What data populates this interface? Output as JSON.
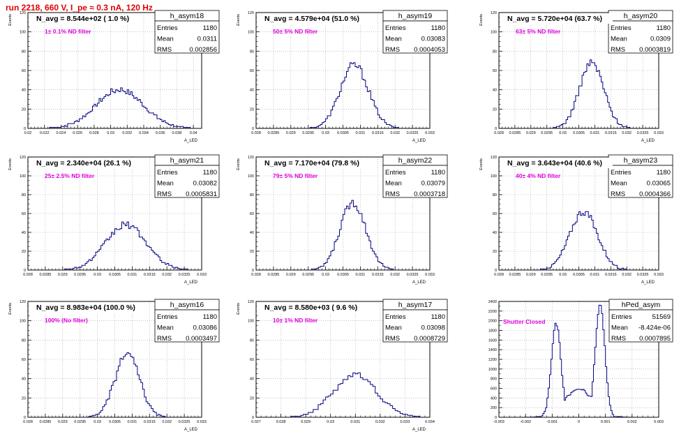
{
  "page": {
    "run_title": "run 2218,   660 V, I_pe ≈ 0.3 nA, 120 Hz"
  },
  "colors": {
    "histogram": "#000080",
    "annotation": "#e000e0",
    "run_title": "#e00000",
    "frame": "#000000",
    "grid": "#9a9a9a"
  },
  "chart_data": [
    {
      "type": "histogram",
      "name": "h_asym18",
      "ylabel": "Events",
      "xlabel": "A_LED",
      "xlim": [
        0.02,
        0.041
      ],
      "ylim": [
        0,
        120
      ],
      "xticks": [
        "0.02",
        "0.022",
        "0.024",
        "0.026",
        "0.028",
        "0.03",
        "0.032",
        "0.034",
        "0.036",
        "0.038",
        "0.04"
      ],
      "xtick_values": [
        0.02,
        0.022,
        0.024,
        0.026,
        0.028,
        0.03,
        0.032,
        0.034,
        0.036,
        0.038,
        0.04
      ],
      "yticks": [
        "0",
        "20",
        "40",
        "60",
        "80",
        "100",
        "120"
      ],
      "yticks_values": [
        0,
        20,
        40,
        60,
        80,
        100,
        120
      ],
      "grid": true,
      "header": "N_avg = 8.544e+02 ( 1.0 %)",
      "annotation": "1± 0.1% ND filter",
      "stats": {
        "Entries": "1180",
        "Mean": "0.0311",
        "RMS": "0.002856"
      },
      "mean": 0.0311,
      "rms": 0.002856,
      "entries": 1180,
      "peak": 40,
      "bin_width": 0.0002
    },
    {
      "type": "histogram",
      "name": "h_asym19",
      "ylabel": "Events",
      "xlabel": "A_LED",
      "xlim": [
        0.028,
        0.033
      ],
      "ylim": [
        0,
        120
      ],
      "xticks": [
        "0.028",
        "0.0285",
        "0.029",
        "0.0295",
        "0.03",
        "0.0305",
        "0.031",
        "0.0315",
        "0.032",
        "0.0325",
        "0.033"
      ],
      "xtick_values": [
        0.028,
        0.0285,
        0.029,
        0.0295,
        0.03,
        0.0305,
        0.031,
        0.0315,
        0.032,
        0.0325,
        0.033
      ],
      "yticks": [
        "0",
        "20",
        "40",
        "60",
        "80",
        "100",
        "120"
      ],
      "yticks_values": [
        0,
        20,
        40,
        60,
        80,
        100,
        120
      ],
      "grid": true,
      "header": "N_avg = 4.579e+04 (51.0 %)",
      "annotation": "50± 5% ND filter",
      "stats": {
        "Entries": "1180",
        "Mean": "0.03083",
        "RMS": "0.0004053"
      },
      "mean": 0.03083,
      "rms": 0.0004053,
      "entries": 1180,
      "peak": 66,
      "bin_width": 5e-05
    },
    {
      "type": "histogram",
      "name": "h_asym20",
      "ylabel": "Events",
      "xlabel": "A_LED",
      "xlim": [
        0.028,
        0.033
      ],
      "ylim": [
        0,
        120
      ],
      "xticks": [
        "0.028",
        "0.0285",
        "0.029",
        "0.0295",
        "0.03",
        "0.0305",
        "0.031",
        "0.0315",
        "0.032",
        "0.0325",
        "0.033"
      ],
      "xtick_values": [
        0.028,
        0.0285,
        0.029,
        0.0295,
        0.03,
        0.0305,
        0.031,
        0.0315,
        0.032,
        0.0325,
        0.033
      ],
      "yticks": [
        "0",
        "20",
        "40",
        "60",
        "80",
        "100",
        "120"
      ],
      "yticks_values": [
        0,
        20,
        40,
        60,
        80,
        100,
        120
      ],
      "grid": true,
      "header": "N_avg = 5.720e+04 (63.7 %)",
      "annotation": "63± 5% ND filter",
      "stats": {
        "Entries": "1180",
        "Mean": "0.0309",
        "RMS": "0.0003819"
      },
      "mean": 0.0309,
      "rms": 0.0003819,
      "entries": 1180,
      "peak": 68,
      "bin_width": 5e-05
    },
    {
      "type": "histogram",
      "name": "h_asym21",
      "ylabel": "Events",
      "xlabel": "A_LED",
      "xlim": [
        0.028,
        0.033
      ],
      "ylim": [
        0,
        120
      ],
      "xticks": [
        "0.028",
        "0.0285",
        "0.029",
        "0.0295",
        "0.03",
        "0.0305",
        "0.031",
        "0.0315",
        "0.032",
        "0.0325",
        "0.033"
      ],
      "xtick_values": [
        0.028,
        0.0285,
        0.029,
        0.0295,
        0.03,
        0.0305,
        0.031,
        0.0315,
        0.032,
        0.0325,
        0.033
      ],
      "yticks": [
        "0",
        "20",
        "40",
        "60",
        "80",
        "100",
        "120"
      ],
      "yticks_values": [
        0,
        20,
        40,
        60,
        80,
        100,
        120
      ],
      "grid": true,
      "header": "N_avg = 2.340e+04 (26.1 %)",
      "annotation": "25± 2.5% ND filter",
      "stats": {
        "Entries": "1180",
        "Mean": "0.03082",
        "RMS": "0.0005831"
      },
      "mean": 0.03082,
      "rms": 0.0005831,
      "entries": 1180,
      "peak": 48,
      "bin_width": 5e-05
    },
    {
      "type": "histogram",
      "name": "h_asym22",
      "ylabel": "Events",
      "xlabel": "A_LED",
      "xlim": [
        0.028,
        0.033
      ],
      "ylim": [
        0,
        120
      ],
      "xticks": [
        "0.028",
        "0.0285",
        "0.029",
        "0.0295",
        "0.03",
        "0.0305",
        "0.031",
        "0.0315",
        "0.032",
        "0.0325",
        "0.033"
      ],
      "xtick_values": [
        0.028,
        0.0285,
        0.029,
        0.0295,
        0.03,
        0.0305,
        0.031,
        0.0315,
        0.032,
        0.0325,
        0.033
      ],
      "yticks": [
        "0",
        "20",
        "40",
        "60",
        "80",
        "100",
        "120"
      ],
      "yticks_values": [
        0,
        20,
        40,
        60,
        80,
        100,
        120
      ],
      "grid": true,
      "header": "N_avg = 7.170e+04 (79.8 %)",
      "annotation": "79± 5% ND filter",
      "stats": {
        "Entries": "1180",
        "Mean": "0.03079",
        "RMS": "0.0003718"
      },
      "mean": 0.03079,
      "rms": 0.0003718,
      "entries": 1180,
      "peak": 72,
      "bin_width": 5e-05
    },
    {
      "type": "histogram",
      "name": "h_asym23",
      "ylabel": "Events",
      "xlabel": "A_LED",
      "xlim": [
        0.028,
        0.033
      ],
      "ylim": [
        0,
        120
      ],
      "xticks": [
        "0.028",
        "0.0285",
        "0.029",
        "0.0295",
        "0.03",
        "0.0305",
        "0.031",
        "0.0315",
        "0.032",
        "0.0325",
        "0.033"
      ],
      "xtick_values": [
        0.028,
        0.0285,
        0.029,
        0.0295,
        0.03,
        0.0305,
        0.031,
        0.0315,
        0.032,
        0.0325,
        0.033
      ],
      "yticks": [
        "0",
        "20",
        "40",
        "60",
        "80",
        "100",
        "120"
      ],
      "yticks_values": [
        0,
        20,
        40,
        60,
        80,
        100,
        120
      ],
      "grid": true,
      "header": "N_avg = 3.643e+04 (40.6 %)",
      "annotation": "40± 4% ND filter",
      "stats": {
        "Entries": "1180",
        "Mean": "0.03065",
        "RMS": "0.0004366"
      },
      "mean": 0.03065,
      "rms": 0.0004366,
      "entries": 1180,
      "peak": 62,
      "bin_width": 5e-05
    },
    {
      "type": "histogram",
      "name": "h_asym16",
      "ylabel": "Events",
      "xlabel": "A_LED",
      "xlim": [
        0.028,
        0.033
      ],
      "ylim": [
        0,
        120
      ],
      "xticks": [
        "0.028",
        "0.0285",
        "0.029",
        "0.0295",
        "0.03",
        "0.0305",
        "0.031",
        "0.0315",
        "0.032",
        "0.0325",
        "0.033"
      ],
      "xtick_values": [
        0.028,
        0.0285,
        0.029,
        0.0295,
        0.03,
        0.0305,
        0.031,
        0.0315,
        0.032,
        0.0325,
        0.033
      ],
      "yticks": [
        "0",
        "20",
        "40",
        "60",
        "80",
        "100",
        "120"
      ],
      "yticks_values": [
        0,
        20,
        40,
        60,
        80,
        100,
        120
      ],
      "grid": true,
      "header": "N_avg = 8.983e+04 (100.0 %)",
      "annotation": "100% (No filter)",
      "stats": {
        "Entries": "1180",
        "Mean": "0.03086",
        "RMS": "0.0003497"
      },
      "mean": 0.03086,
      "rms": 0.0003497,
      "entries": 1180,
      "peak": 66,
      "bin_width": 5e-05
    },
    {
      "type": "histogram",
      "name": "h_asym17",
      "ylabel": "Events",
      "xlabel": "A_LED",
      "xlim": [
        0.027,
        0.034
      ],
      "ylim": [
        0,
        120
      ],
      "xticks": [
        "0.027",
        "0.028",
        "0.029",
        "0.03",
        "0.031",
        "0.032",
        "0.033",
        "0.034"
      ],
      "xtick_values": [
        0.027,
        0.028,
        0.029,
        0.03,
        0.031,
        0.032,
        0.033,
        0.034
      ],
      "yticks": [
        "0",
        "20",
        "40",
        "60",
        "80",
        "100",
        "120"
      ],
      "yticks_values": [
        0,
        20,
        40,
        60,
        80,
        100,
        120
      ],
      "grid": true,
      "header": "N_avg = 8.580e+03 ( 9.6 %)",
      "annotation": "10± 1% ND filter",
      "stats": {
        "Entries": "1180",
        "Mean": "0.03098",
        "RMS": "0.0008729"
      },
      "mean": 0.03098,
      "rms": 0.0008729,
      "entries": 1180,
      "peak": 44,
      "bin_width": 0.0001
    },
    {
      "type": "histogram",
      "name": "hPed_asym",
      "ylabel": "",
      "xlabel": "",
      "xlim": [
        -0.003,
        0.003
      ],
      "ylim": [
        0,
        2400
      ],
      "xticks": [
        "-0.003",
        "-0.002",
        "-0.001",
        "0",
        "0.001",
        "0.002",
        "0.003"
      ],
      "xtick_values": [
        -0.003,
        -0.002,
        -0.001,
        0,
        0.001,
        0.002,
        0.003
      ],
      "yticks": [
        "0",
        "200",
        "400",
        "600",
        "800",
        "1000",
        "1200",
        "1400",
        "1600",
        "1800",
        "2000",
        "2200",
        "2400"
      ],
      "yticks_values": [
        0,
        200,
        400,
        600,
        800,
        1000,
        1200,
        1400,
        1600,
        1800,
        2000,
        2200,
        2400
      ],
      "grid": true,
      "header": "",
      "annotation": "Shutter Closed",
      "stats": {
        "Entries": "51569",
        "Mean": "-8.424e-06",
        "RMS": "0.0007895"
      },
      "bimodal": true,
      "mean": -8.424e-06,
      "rms": 0.0007895,
      "entries": 51569,
      "peak_left": 1940,
      "peak_left_x": -0.00085,
      "peak_right": 2330,
      "peak_right_x": 0.0008,
      "valley": 580,
      "bin_width": 5e-05
    }
  ]
}
